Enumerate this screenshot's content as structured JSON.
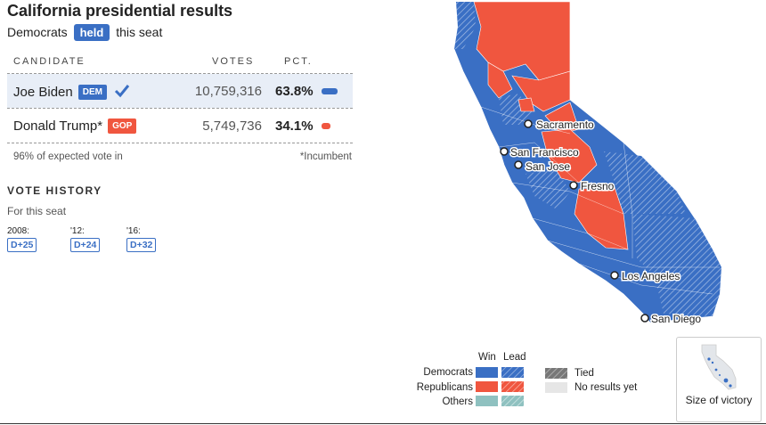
{
  "title": "California presidential results",
  "subtitle": {
    "pre": "Democrats",
    "badge": "held",
    "post": "this seat"
  },
  "table": {
    "headers": {
      "candidate": "CANDIDATE",
      "votes": "VOTES",
      "pct": "PCT."
    },
    "rows": [
      {
        "name": "Joe Biden",
        "party": "DEM",
        "votes": "10,759,316",
        "pct": "63.8%",
        "pct_value": 63.8,
        "winner": true,
        "color": "#3a6fc4"
      },
      {
        "name": "Donald Trump*",
        "party": "GOP",
        "votes": "5,749,736",
        "pct": "34.1%",
        "pct_value": 34.1,
        "winner": false,
        "color": "#f0563f"
      }
    ],
    "expected": "96% of expected vote in",
    "incumbent": "*Incumbent"
  },
  "vote_history": {
    "title": "VOTE HISTORY",
    "sub": "For this seat",
    "items": [
      {
        "year": "2008:",
        "margin": "D+25"
      },
      {
        "year": "'12:",
        "margin": "D+24"
      },
      {
        "year": "'16:",
        "margin": "D+32"
      }
    ]
  },
  "cities": [
    "Sacramento",
    "San Francisco",
    "San Jose",
    "Fresno",
    "Los Angeles",
    "San Diego"
  ],
  "legend": {
    "win": "Win",
    "lead": "Lead",
    "democrats": "Democrats",
    "republicans": "Republicans",
    "others": "Others",
    "tied": "Tied",
    "no_results": "No results yet"
  },
  "size_of_victory": "Size of victory",
  "colors": {
    "dem": "#3a6fc4",
    "rep": "#f0563f",
    "other": "#8fc1c0",
    "tied": "#777777",
    "none": "#e6e6e6"
  }
}
